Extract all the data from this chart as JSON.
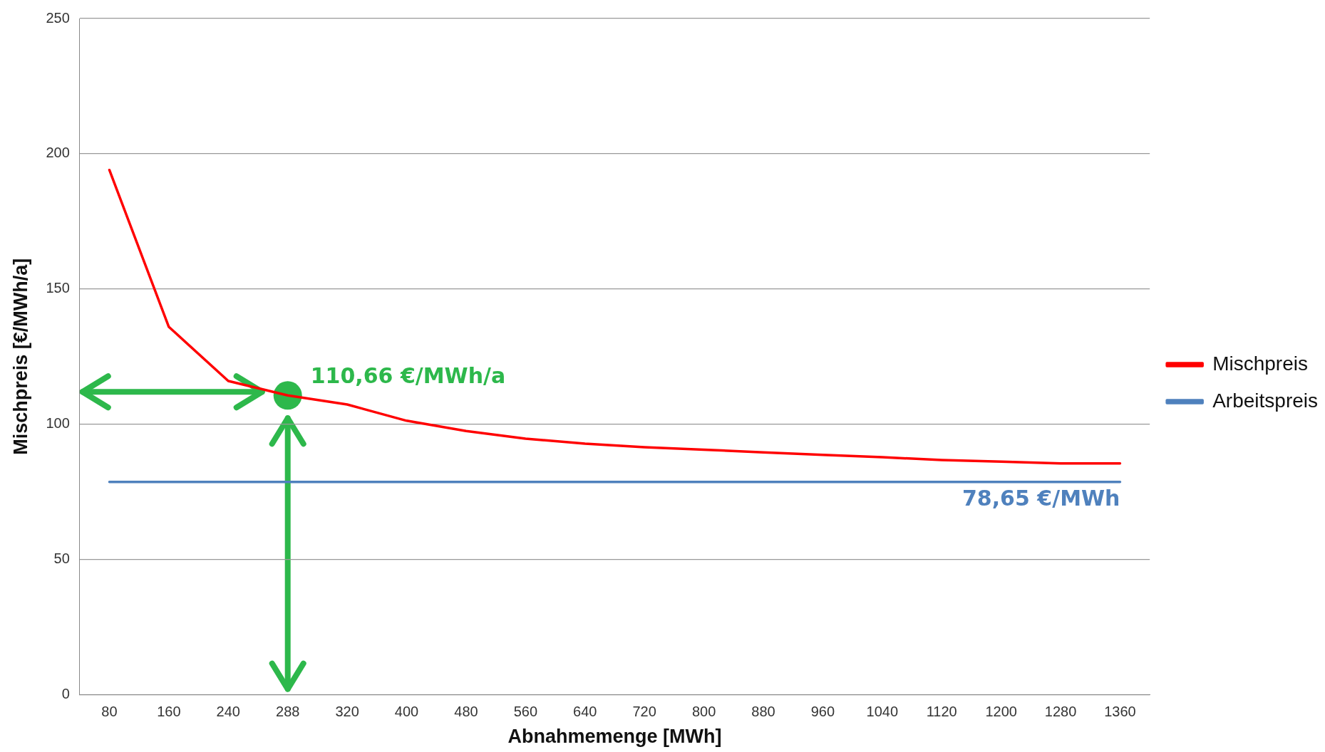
{
  "chart_data": {
    "type": "line",
    "xlabel": "Abnahmemenge [MWh]",
    "ylabel": "Mischpreis [€/MWh/a]",
    "categories": [
      "80",
      "160",
      "240",
      "288",
      "320",
      "400",
      "480",
      "560",
      "640",
      "720",
      "800",
      "880",
      "960",
      "1040",
      "1120",
      "1200",
      "1280",
      "1360"
    ],
    "series": [
      {
        "name": "Mischpreis",
        "color": "#ff0000",
        "values": [
          194,
          136,
          116,
          110.66,
          107.3,
          101.3,
          97.5,
          94.7,
          92.8,
          91.5,
          90.6,
          89.6,
          88.7,
          87.8,
          86.8,
          86.2,
          85.5,
          85.5
        ]
      },
      {
        "name": "Arbeitspreis",
        "color": "#4f81bd",
        "values": [
          78.65,
          78.65,
          78.65,
          78.65,
          78.65,
          78.65,
          78.65,
          78.65,
          78.65,
          78.65,
          78.65,
          78.65,
          78.65,
          78.65,
          78.65,
          78.65,
          78.65,
          78.65
        ]
      }
    ],
    "ylim": [
      0,
      250
    ],
    "yticks": [
      0,
      50,
      100,
      150,
      200,
      250
    ],
    "grid": "y",
    "legend": "right",
    "marker": "none",
    "line_style": "solid",
    "annotations": [
      {
        "text": "110,66 €/MWh/a",
        "x": "288",
        "y": 110.66
      },
      {
        "text": "78,65 €/MWh",
        "x": "1360",
        "y": 78.65
      }
    ]
  }
}
